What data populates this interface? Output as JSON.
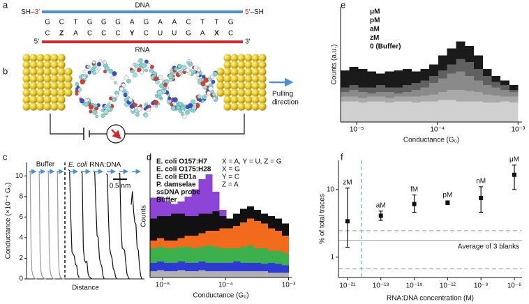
{
  "panel_labels": [
    "a",
    "b",
    "c",
    "d",
    "e",
    "f"
  ],
  "sequence": {
    "dna_label": "DNA",
    "rna_label": "RNA",
    "dna_left_group": "SH–",
    "dna_left_end": "3′",
    "dna_right_end": "5′",
    "dna_right_group": "–SH",
    "rna_left_end": "5′",
    "rna_right_end": "3′",
    "dna_bases": [
      "G",
      "C",
      "T",
      "G",
      "G",
      "G",
      "A",
      "G",
      "A",
      "A",
      "C",
      "T",
      "T",
      "G"
    ],
    "rna_bases": [
      "C",
      "Z",
      "A",
      "C",
      "C",
      "C",
      "Y",
      "C",
      "U",
      "U",
      "G",
      "A",
      "X",
      "C"
    ],
    "probe_colors": {
      "Z": "#3aa655",
      "Y": "#f08a24",
      "X": "#8e3fc1"
    },
    "dna_color": "#4a90d9",
    "rna_color": "#d9262c"
  },
  "junction": {
    "pulling_label": [
      "Pulling",
      "direction"
    ]
  },
  "chart_data": [
    {
      "type": "traces",
      "ylabel": "Conductance (×10⁻⁴ G₀)",
      "xlabel": "Distance",
      "ylim": [
        0,
        11.3
      ],
      "yticks": [
        0,
        2,
        4,
        6,
        8,
        10
      ],
      "buffer_label": "Buffer",
      "sample_label_organism": "E. coli",
      "sample_label_rest": "RNA:DNA",
      "scale_bar_label": "0.5 nm",
      "buffer_color": "#9a9a9a",
      "sample_color": "#111111",
      "buffer_traces": [
        [
          10.5,
          10.4,
          3,
          0.8,
          0.4,
          0.2,
          0.1,
          0,
          0,
          0
        ],
        [
          10.4,
          10.3,
          2.5,
          0.7,
          0.3,
          0.2,
          0.1,
          0,
          0,
          0
        ],
        [
          10.5,
          10.4,
          3.2,
          0.9,
          0.4,
          0.2,
          0.1,
          0,
          0,
          0
        ],
        [
          10.4,
          10.4,
          2.8,
          0.8,
          0.3,
          0.1,
          0.1,
          0,
          0,
          0
        ]
      ],
      "sample_traces": [
        [
          10.6,
          10.5,
          6,
          2.6,
          2.4,
          2.2,
          1.4,
          1.3,
          0.4,
          0.1
        ],
        [
          10.4,
          10.3,
          3,
          1.8,
          1.6,
          1.7,
          0.5,
          0.2,
          0.1,
          0
        ],
        [
          10.5,
          10.4,
          7,
          4.2,
          4,
          2,
          1.5,
          1.2,
          0.3,
          0
        ],
        [
          10.2,
          10.1,
          6,
          3,
          2.4,
          2,
          1,
          0.8,
          0.2,
          0
        ],
        [
          10.3,
          10.2,
          5,
          3,
          2.9,
          2.8,
          1.6,
          0.5,
          0.2,
          0
        ],
        [
          7.2,
          8.5,
          6.6,
          5.5,
          5.3,
          3,
          2.8,
          1.2,
          0.3,
          0
        ]
      ]
    },
    {
      "type": "histogram",
      "xlabel": "Conductance (G₀)",
      "ylabel": "Counts",
      "xscale": "log",
      "xlim": [
        6.31e-06,
        0.00112
      ],
      "xticks": [
        {
          "value": 1e-05,
          "label": "10⁻⁵"
        },
        {
          "value": 0.0001,
          "label": "10⁻⁴"
        },
        {
          "value": 0.001,
          "label": "10⁻³"
        }
      ],
      "ylim": [
        0,
        100
      ],
      "bins": [
        6.31e-06,
        8.13e-06,
        1.047e-05,
        1.349e-05,
        1.738e-05,
        2.239e-05,
        2.884e-05,
        3.715e-05,
        4.786e-05,
        6.166e-05,
        7.943e-05,
        0.0001023,
        0.0001318,
        0.0001698,
        0.0002188,
        0.0002818,
        0.0003631,
        0.0004677,
        0.0006026,
        0.0007762,
        0.001
      ],
      "series": [
        {
          "name": "E. coli O157:H7",
          "color": "#111111",
          "values": [
            48,
            50,
            50,
            52,
            52,
            50,
            50,
            52,
            52,
            54,
            50,
            48,
            52,
            56,
            58,
            55,
            52,
            50,
            48,
            44
          ]
        },
        {
          "name": "E. coli O175:H28",
          "color": "#8e44d6",
          "values": [
            65,
            66,
            62,
            60,
            62,
            66,
            72,
            80,
            84,
            70,
            55,
            48,
            45,
            44,
            42,
            40,
            38,
            36,
            34,
            30
          ]
        },
        {
          "name": "E. coli ED1a",
          "color": "#f26b1d",
          "values": [
            30,
            32,
            30,
            30,
            32,
            34,
            34,
            36,
            38,
            38,
            40,
            40,
            42,
            45,
            48,
            46,
            44,
            40,
            38,
            34
          ]
        },
        {
          "name": "P. damselae",
          "color": "#3cb04a",
          "values": [
            24,
            25,
            24,
            24,
            25,
            25,
            24,
            25,
            26,
            25,
            24,
            24,
            24,
            25,
            26,
            24,
            24,
            22,
            22,
            20
          ]
        },
        {
          "name": "ssDNA probe",
          "color": "#2d3bd3",
          "values": [
            12,
            13,
            12,
            12,
            13,
            12,
            12,
            13,
            12,
            12,
            12,
            12,
            13,
            12,
            12,
            12,
            11,
            12,
            11,
            10
          ]
        },
        {
          "name": "Buffer",
          "color": "#b0b0b0",
          "values": [
            5,
            6,
            5,
            5,
            6,
            5,
            5,
            6,
            5,
            5,
            5,
            5,
            5,
            5,
            5,
            5,
            5,
            4,
            4,
            4
          ]
        }
      ],
      "annotations": [
        {
          "text": "X = A, Y = U, Z = G",
          "color": "#111111"
        },
        {
          "text": "X = G",
          "color": "#8e44d6"
        },
        {
          "text": "Y = C",
          "color": "#e8312a"
        },
        {
          "text": "Z = A",
          "color": "#3cb04a"
        }
      ]
    },
    {
      "type": "histogram",
      "xlabel": "Conductance (G₀)",
      "ylabel": "Counts (a.u.)",
      "xscale": "log",
      "xlim": [
        6.31e-06,
        0.00112
      ],
      "xticks": [
        {
          "value": 1e-05,
          "label": "10⁻⁵"
        },
        {
          "value": 0.0001,
          "label": "10⁻⁴"
        },
        {
          "value": 0.001,
          "label": "10⁻³"
        }
      ],
      "ylim": [
        0,
        100
      ],
      "bins": [
        6.31e-06,
        8.13e-06,
        1.047e-05,
        1.349e-05,
        1.738e-05,
        2.239e-05,
        2.884e-05,
        3.715e-05,
        4.786e-05,
        6.166e-05,
        7.943e-05,
        0.0001023,
        0.0001318,
        0.0001698,
        0.0002188,
        0.0002818,
        0.0003631,
        0.0004677,
        0.0006026,
        0.0007762,
        0.001
      ],
      "series": [
        {
          "name": "μM",
          "color": "#1a1a1a",
          "values": [
            45,
            48,
            46,
            44,
            42,
            44,
            45,
            46,
            44,
            46,
            50,
            58,
            64,
            70,
            66,
            58,
            46,
            40,
            36,
            32
          ]
        },
        {
          "name": "pM",
          "color": "#606060",
          "values": [
            30,
            32,
            30,
            30,
            32,
            30,
            30,
            32,
            34,
            36,
            40,
            45,
            50,
            55,
            52,
            46,
            40,
            35,
            32,
            28
          ]
        },
        {
          "name": "aM",
          "color": "#8a8a8a",
          "values": [
            26,
            28,
            26,
            25,
            26,
            26,
            25,
            26,
            28,
            30,
            34,
            38,
            42,
            44,
            40,
            36,
            32,
            30,
            28,
            26
          ]
        },
        {
          "name": "zM",
          "color": "#a9a9a9",
          "values": [
            22,
            22,
            21,
            22,
            22,
            21,
            22,
            22,
            22,
            23,
            24,
            26,
            28,
            28,
            27,
            26,
            24,
            23,
            22,
            22
          ]
        },
        {
          "name": "0 (Buffer)",
          "color": "#d0d0d0",
          "values": [
            18,
            18,
            17,
            18,
            18,
            17,
            18,
            18,
            17,
            18,
            18,
            19,
            19,
            18,
            18,
            18,
            17,
            17,
            18,
            17
          ]
        }
      ]
    },
    {
      "type": "scatter",
      "xlabel": "RNA:DNA concentration (M)",
      "ylabel": "% of total traces",
      "xscale": "log",
      "yscale": "log",
      "xlim": [
        1.55e-22,
        4.9e-06
      ],
      "ylim": [
        0.5,
        27
      ],
      "xticks": [
        {
          "value": 1e-21,
          "label": "10⁻²¹"
        },
        {
          "value": 1e-18,
          "label": "10⁻¹⁸"
        },
        {
          "value": 1e-15,
          "label": "10⁻¹⁵"
        },
        {
          "value": 1e-12,
          "label": "10⁻¹²"
        },
        {
          "value": 1e-09,
          "label": "10⁻⁹"
        },
        {
          "value": 1e-06,
          "label": "10⁻⁶"
        }
      ],
      "yticks": [
        1,
        10
      ],
      "x": [
        1e-21,
        1e-18,
        1e-15,
        1e-12,
        1e-09,
        1e-06
      ],
      "values": [
        3.4,
        4.1,
        6.1,
        6.4,
        7.5,
        16.5
      ],
      "yerr_minus": [
        2.0,
        0.6,
        1.5,
        0.4,
        2.9,
        6.5
      ],
      "yerr_plus": [
        7.1,
        0.7,
        2.2,
        0.4,
        3.5,
        6.5
      ],
      "point_labels": [
        "zM",
        "aM",
        "fM",
        "pM",
        "nM",
        "μM"
      ],
      "color": "#111111",
      "blank_mean": 1.77,
      "blank_band": [
        0.67,
        2.46
      ],
      "blank_label": "Average of 3 blanks",
      "blank_color": "#9a9a9a",
      "separator_color": "#56c0d8"
    }
  ]
}
